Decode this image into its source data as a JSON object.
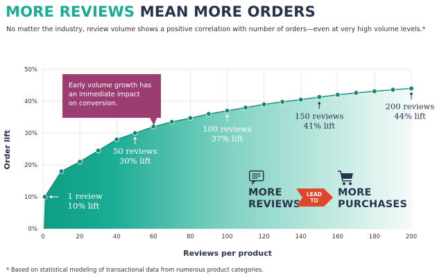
{
  "header": {
    "title_accent": "MORE REVIEWS",
    "title_main": "MEAN MORE ORDERS",
    "subtitle": "No matter the industry, review volume shows a positive correlation with number of orders—even at very high volume levels.*"
  },
  "footnote": "* Based on statistical modeling of transactional data from numerous product categories.",
  "callout": {
    "lines": [
      "Early volume growth has",
      "an immediate impact",
      "on conversion."
    ]
  },
  "promo": {
    "left_line1": "MORE",
    "left_line2": "REVIEWS",
    "arrow_line1": "LEAD",
    "arrow_line2": "TO",
    "right_line1": "MORE",
    "right_line2": "PURCHASES"
  },
  "colors": {
    "teal": "#1aab94",
    "navy": "#27334a",
    "callout": "#9c3d71",
    "arrow": "#e0462c"
  },
  "chart_data": {
    "type": "line",
    "title": "MORE REVIEWS MEAN MORE ORDERS",
    "xlabel": "Reviews per product",
    "ylabel": "Order lift",
    "xlim": [
      0,
      200
    ],
    "ylim": [
      0,
      50
    ],
    "x_ticks": [
      0,
      20,
      40,
      60,
      80,
      100,
      120,
      140,
      160,
      180,
      200
    ],
    "y_ticks": [
      "0%",
      "10%",
      "20%",
      "30%",
      "40%",
      "50%"
    ],
    "y_tick_values": [
      0,
      10,
      20,
      30,
      40,
      50
    ],
    "grid": true,
    "series": [
      {
        "name": "Order lift",
        "x": [
          1,
          10,
          20,
          30,
          40,
          50,
          60,
          70,
          80,
          90,
          100,
          110,
          120,
          130,
          140,
          150,
          160,
          170,
          180,
          190,
          200
        ],
        "values": [
          10,
          18,
          21,
          24.5,
          28,
          30,
          32,
          33.5,
          34.7,
          36,
          37,
          38,
          39,
          39.8,
          40.5,
          41.3,
          42,
          42.6,
          43.1,
          43.6,
          44
        ]
      }
    ],
    "annotations": [
      {
        "x": 1,
        "y": 10,
        "line1": "1 review",
        "line2": "10% lift"
      },
      {
        "x": 50,
        "y": 30,
        "line1": "50 reviews",
        "line2": "30% lift"
      },
      {
        "x": 100,
        "y": 37,
        "line1": "100 reviews",
        "line2": "37% lift"
      },
      {
        "x": 150,
        "y": 41,
        "line1": "150 reviews",
        "line2": "41% lift"
      },
      {
        "x": 200,
        "y": 44,
        "line1": "200 reviews",
        "line2": "44% lift"
      }
    ]
  }
}
